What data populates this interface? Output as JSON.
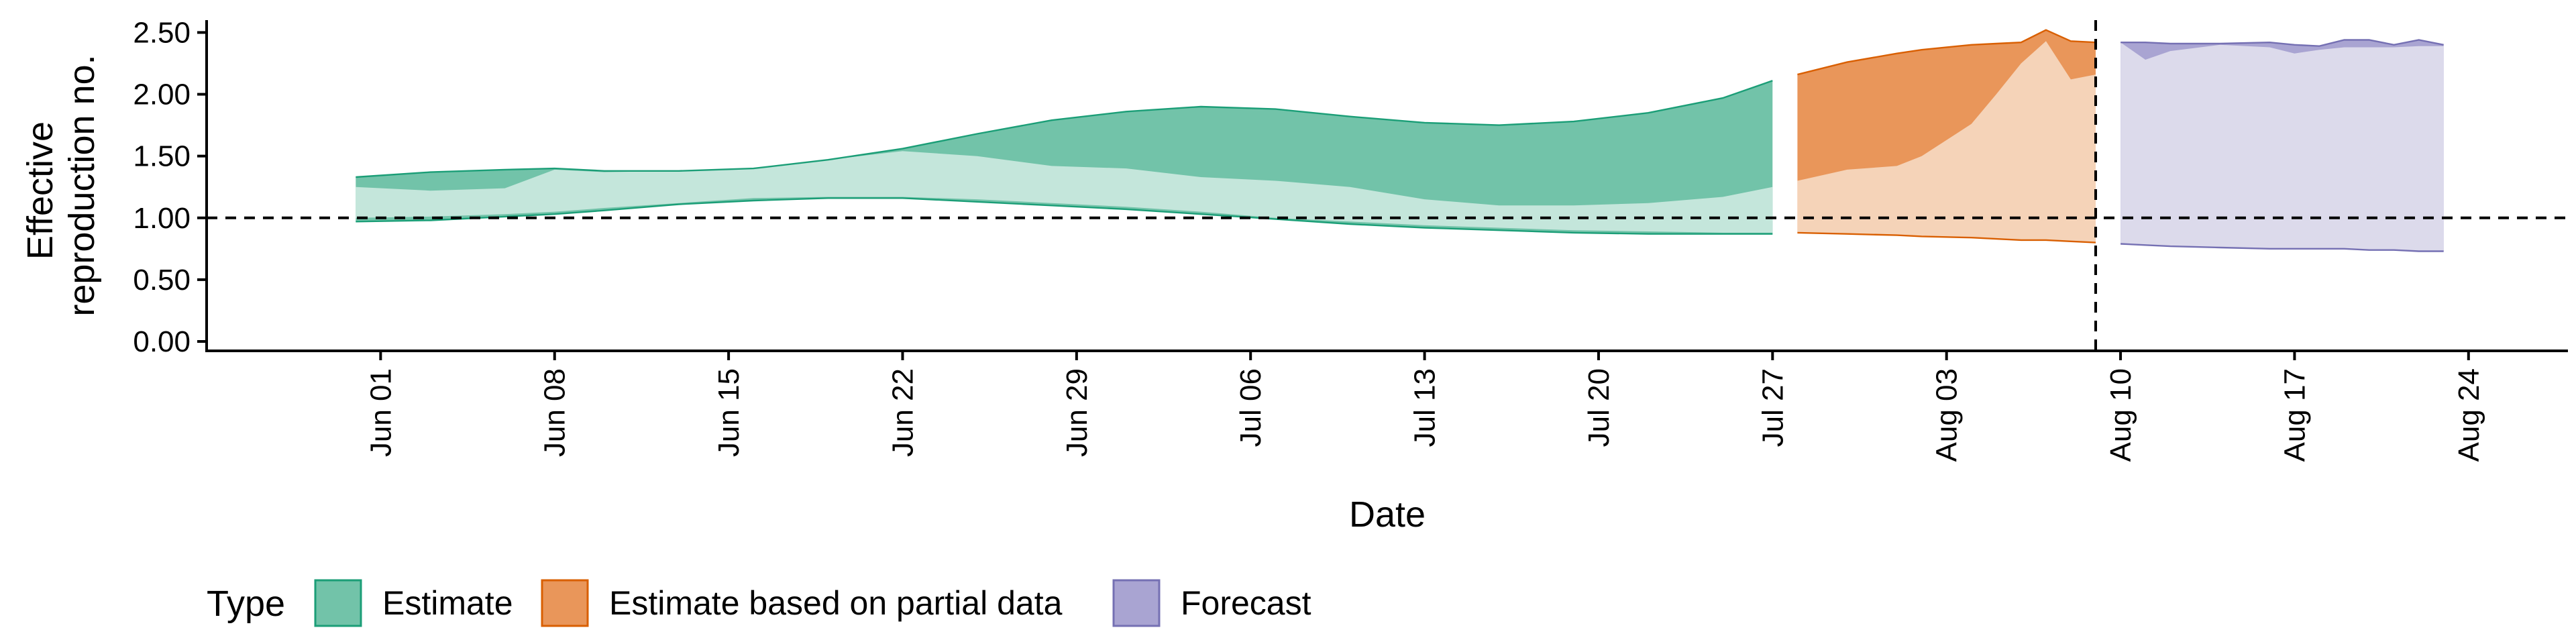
{
  "chart_data": {
    "type": "area",
    "xlabel": "Date",
    "ylabel_lines": [
      "Effective",
      "reproduction no."
    ],
    "ylim": [
      0,
      2.6
    ],
    "yticks": [
      0.0,
      0.5,
      1.0,
      1.5,
      2.0,
      2.5
    ],
    "ytick_labels": [
      "0.00",
      "0.50",
      "1.00",
      "1.50",
      "2.00",
      "2.50"
    ],
    "xlim": [
      "2020-05-25",
      "2020-08-28"
    ],
    "xticks": [
      "2020-06-01",
      "2020-06-08",
      "2020-06-15",
      "2020-06-22",
      "2020-06-29",
      "2020-07-06",
      "2020-07-13",
      "2020-07-20",
      "2020-07-27",
      "2020-08-03",
      "2020-08-10",
      "2020-08-17",
      "2020-08-24"
    ],
    "xtick_labels": [
      "Jun 01",
      "Jun 08",
      "Jun 15",
      "Jun 22",
      "Jun 29",
      "Jul 06",
      "Jul 13",
      "Jul 20",
      "Jul 27",
      "Aug 03",
      "Aug 10",
      "Aug 17",
      "Aug 24"
    ],
    "reference_line": {
      "y": 1.0,
      "style": "dashed"
    },
    "vertical_line": {
      "x": "2020-08-09",
      "style": "dashed"
    },
    "legend": {
      "title": "Type",
      "placement": "bottom",
      "entries": [
        "Estimate",
        "Estimate based on partial data",
        "Forecast"
      ]
    },
    "series": [
      {
        "name": "Estimate",
        "colors": {
          "outer": "#72c3a9",
          "inner": "#c4e6db",
          "line": "#1b9e77"
        },
        "x": [
          "2020-05-31",
          "2020-06-03",
          "2020-06-06",
          "2020-06-08",
          "2020-06-10",
          "2020-06-13",
          "2020-06-16",
          "2020-06-19",
          "2020-06-22",
          "2020-06-25",
          "2020-06-28",
          "2020-07-01",
          "2020-07-04",
          "2020-07-07",
          "2020-07-10",
          "2020-07-13",
          "2020-07-16",
          "2020-07-19",
          "2020-07-22",
          "2020-07-25",
          "2020-07-27"
        ],
        "upper90": [
          1.33,
          1.37,
          1.39,
          1.4,
          1.38,
          1.38,
          1.4,
          1.47,
          1.56,
          1.68,
          1.79,
          1.86,
          1.9,
          1.88,
          1.82,
          1.77,
          1.75,
          1.78,
          1.85,
          1.97,
          2.11
        ],
        "upper50": [
          1.25,
          1.22,
          1.24,
          1.39,
          1.37,
          1.38,
          1.4,
          1.47,
          1.54,
          1.5,
          1.42,
          1.4,
          1.33,
          1.3,
          1.25,
          1.15,
          1.1,
          1.1,
          1.12,
          1.17,
          1.25
        ],
        "lower50": [
          1.0,
          1.01,
          1.03,
          1.05,
          1.08,
          1.12,
          1.16,
          1.17,
          1.17,
          1.15,
          1.12,
          1.09,
          1.05,
          1.0,
          0.97,
          0.94,
          0.92,
          0.9,
          0.89,
          0.88,
          0.88
        ],
        "lower90": [
          0.97,
          0.98,
          1.01,
          1.03,
          1.06,
          1.11,
          1.14,
          1.16,
          1.16,
          1.13,
          1.1,
          1.07,
          1.03,
          0.99,
          0.95,
          0.92,
          0.9,
          0.88,
          0.87,
          0.87,
          0.87
        ]
      },
      {
        "name": "Estimate based on partial data",
        "colors": {
          "outer": "#e9965a",
          "inner": "#f5d3b8",
          "line": "#d95f02"
        },
        "x": [
          "2020-07-28",
          "2020-07-30",
          "2020-08-01",
          "2020-08-02",
          "2020-08-04",
          "2020-08-05",
          "2020-08-06",
          "2020-08-07",
          "2020-08-08",
          "2020-08-09"
        ],
        "upper90": [
          2.16,
          2.26,
          2.33,
          2.36,
          2.4,
          2.41,
          2.42,
          2.52,
          2.43,
          2.42
        ],
        "upper50": [
          1.3,
          1.39,
          1.42,
          1.5,
          1.76,
          2.0,
          2.25,
          2.43,
          2.12,
          2.16
        ],
        "lower50": [
          0.88,
          0.87,
          0.86,
          0.85,
          0.84,
          0.83,
          0.82,
          0.82,
          0.81,
          0.8
        ],
        "lower90": [
          0.88,
          0.87,
          0.86,
          0.85,
          0.84,
          0.83,
          0.82,
          0.82,
          0.81,
          0.8
        ]
      },
      {
        "name": "Forecast",
        "colors": {
          "outer": "#a9a4d2",
          "inner": "#dcdaeb",
          "line": "#7570b3"
        },
        "x": [
          "2020-08-10",
          "2020-08-11",
          "2020-08-12",
          "2020-08-14",
          "2020-08-16",
          "2020-08-17",
          "2020-08-18",
          "2020-08-19",
          "2020-08-20",
          "2020-08-21",
          "2020-08-22",
          "2020-08-23"
        ],
        "upper90": [
          2.42,
          2.42,
          2.41,
          2.41,
          2.42,
          2.4,
          2.39,
          2.44,
          2.44,
          2.4,
          2.44,
          2.4
        ],
        "upper50": [
          2.42,
          2.28,
          2.35,
          2.4,
          2.38,
          2.33,
          2.36,
          2.38,
          2.38,
          2.38,
          2.39,
          2.39
        ],
        "lower50": [
          0.79,
          0.78,
          0.77,
          0.76,
          0.75,
          0.75,
          0.75,
          0.75,
          0.74,
          0.74,
          0.73,
          0.73
        ],
        "lower90": [
          0.79,
          0.78,
          0.77,
          0.76,
          0.75,
          0.75,
          0.75,
          0.75,
          0.74,
          0.74,
          0.73,
          0.73
        ]
      }
    ]
  }
}
